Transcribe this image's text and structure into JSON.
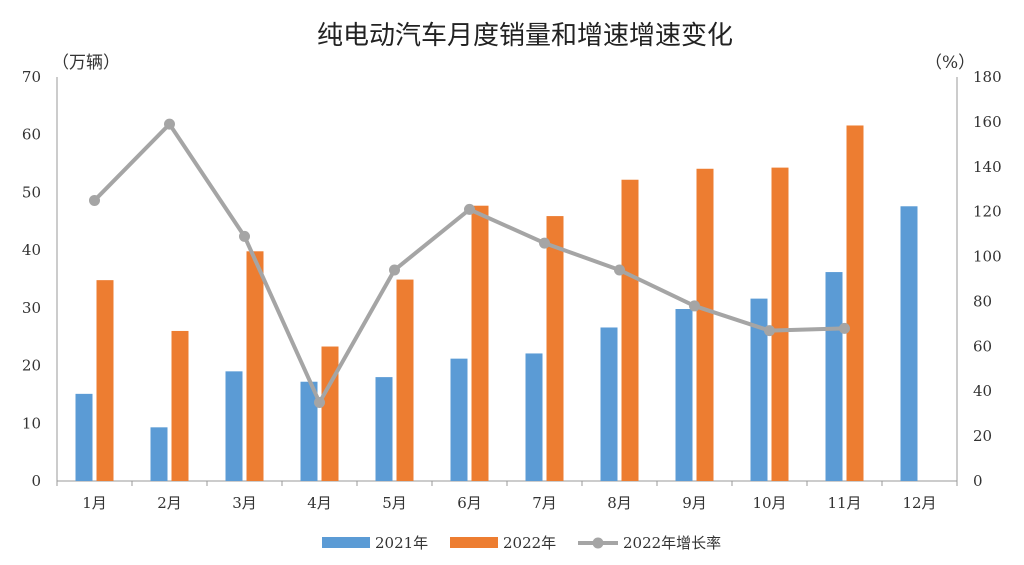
{
  "chart_data": {
    "type": "bar",
    "title": "纯电动汽车月度销量和增速增速变化",
    "y_left_unit": "（万辆）",
    "y_right_unit": "（%）",
    "categories": [
      "1月",
      "2月",
      "3月",
      "4月",
      "5月",
      "6月",
      "7月",
      "8月",
      "9月",
      "10月",
      "11月",
      "12月"
    ],
    "y_left_ticks": [
      "0",
      "10",
      "20",
      "30",
      "40",
      "50",
      "60",
      "70"
    ],
    "y_right_ticks": [
      "0",
      "20",
      "40",
      "60",
      "80",
      "100",
      "120",
      "140",
      "160",
      "180"
    ],
    "ylim_left": [
      0,
      70
    ],
    "ylim_right": [
      0,
      180
    ],
    "grid": false,
    "legend_position": "bottom",
    "series": [
      {
        "name": "2021年",
        "type": "bar",
        "axis": "left",
        "color": "#5b9bd5",
        "values": [
          15.1,
          9.3,
          19.0,
          17.2,
          18.0,
          21.2,
          22.1,
          26.6,
          29.8,
          31.6,
          36.2,
          47.6
        ]
      },
      {
        "name": "2022年",
        "type": "bar",
        "axis": "left",
        "color": "#ed7d31",
        "values": [
          34.8,
          26.0,
          39.8,
          23.3,
          34.9,
          47.7,
          45.9,
          52.2,
          54.1,
          54.3,
          61.6,
          null
        ]
      },
      {
        "name": "2022年增长率",
        "type": "line",
        "axis": "right",
        "color": "#a5a5a5",
        "values": [
          125,
          159,
          109,
          35,
          94,
          121,
          106,
          94,
          78,
          67,
          68,
          null
        ]
      }
    ]
  }
}
